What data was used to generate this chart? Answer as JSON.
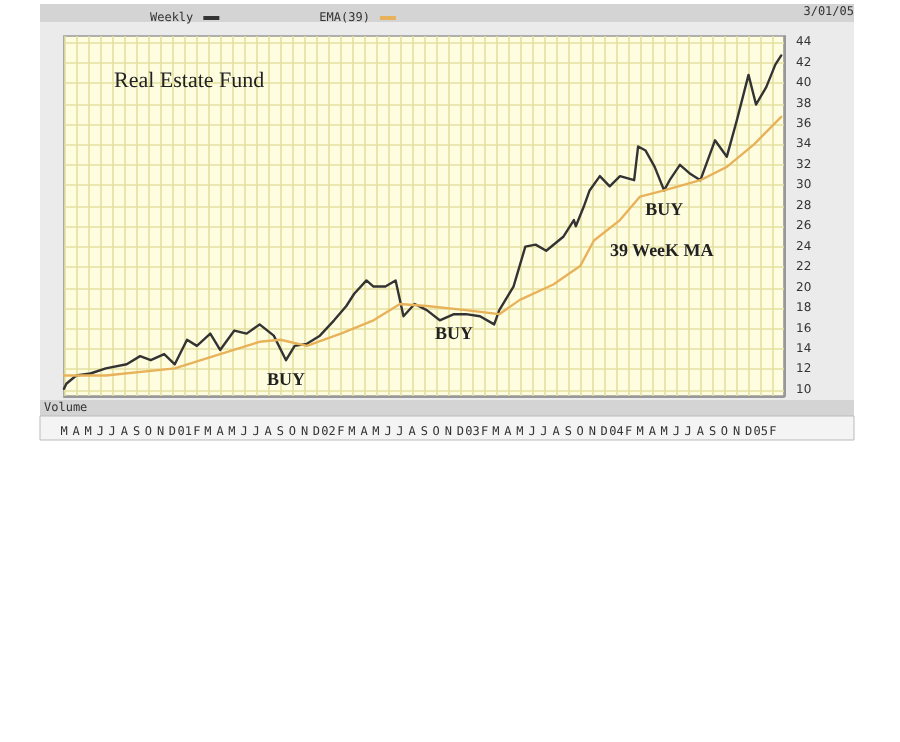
{
  "chart_data": {
    "type": "line",
    "title": "Real Estate Fund",
    "series": [
      {
        "name": "Weekly",
        "color": "#333333",
        "x": [
          "2000-03-01",
          "2000-03-07",
          "2000-04-01",
          "2000-05-07",
          "2000-06-15",
          "2000-08-07",
          "2000-09-10",
          "2000-10-07",
          "2000-11-10",
          "2000-12-07",
          "2001-01-07",
          "2001-02-01",
          "2001-03-07",
          "2001-04-01",
          "2001-05-07",
          "2001-06-07",
          "2001-07-10",
          "2001-08-15",
          "2001-09-15",
          "2001-10-07",
          "2001-11-07",
          "2001-12-10",
          "2002-01-15",
          "2002-02-15",
          "2002-03-07",
          "2002-04-07",
          "2002-04-25",
          "2002-05-25",
          "2002-06-20",
          "2002-07-10",
          "2002-08-07",
          "2002-09-07",
          "2002-10-10",
          "2002-11-15",
          "2002-12-15",
          "2003-01-20",
          "2003-02-25",
          "2003-03-10",
          "2003-04-15",
          "2003-05-15",
          "2003-06-10",
          "2003-07-07",
          "2003-08-20",
          "2003-09-15",
          "2003-09-20",
          "2003-10-10",
          "2003-10-25",
          "2003-11-20",
          "2003-12-15",
          "2004-01-10",
          "2004-02-15",
          "2004-02-25",
          "2004-03-15",
          "2004-04-07",
          "2004-05-01",
          "2004-05-15",
          "2004-06-10",
          "2004-07-07",
          "2004-08-01",
          "2004-09-07",
          "2004-10-07",
          "2004-11-01",
          "2004-12-01",
          "2004-12-20",
          "2005-01-15",
          "2005-02-07",
          "2005-02-22"
        ],
        "values": [
          10.1,
          10.6,
          11.4,
          11.6,
          12.1,
          12.5,
          13.3,
          12.9,
          13.5,
          12.5,
          14.9,
          14.3,
          15.5,
          13.9,
          15.8,
          15.5,
          16.4,
          15.3,
          12.9,
          14.3,
          14.5,
          15.3,
          16.8,
          18.2,
          19.4,
          20.7,
          20.1,
          20.1,
          20.7,
          17.2,
          18.4,
          17.8,
          16.8,
          17.4,
          17.4,
          17.2,
          16.4,
          17.8,
          20.1,
          24.0,
          24.2,
          23.6,
          25.0,
          26.6,
          26.0,
          27.9,
          29.5,
          30.9,
          29.9,
          30.9,
          30.5,
          33.8,
          33.4,
          31.8,
          29.5,
          30.5,
          32.0,
          31.1,
          30.5,
          34.4,
          32.8,
          36.3,
          40.8,
          37.9,
          39.6,
          41.8,
          42.7
        ]
      },
      {
        "name": "EMA(39)",
        "color": "#e8b25a",
        "x": [
          "2000-03-01",
          "2000-06-15",
          "2000-12-07",
          "2001-04-01",
          "2001-07-10",
          "2001-09-01",
          "2001-11-07",
          "2002-02-01",
          "2002-04-25",
          "2002-07-01",
          "2002-09-07",
          "2002-12-15",
          "2003-03-10",
          "2003-05-01",
          "2003-07-25",
          "2003-10-01",
          "2003-11-05",
          "2004-01-10",
          "2004-03-01",
          "2004-05-01",
          "2004-08-01",
          "2004-10-07",
          "2004-12-15",
          "2005-02-22"
        ],
        "values": [
          11.4,
          11.4,
          12.1,
          13.5,
          14.7,
          14.9,
          14.3,
          15.5,
          16.8,
          18.4,
          18.2,
          17.8,
          17.4,
          18.8,
          20.3,
          22.1,
          24.6,
          26.6,
          28.9,
          29.5,
          30.5,
          31.8,
          34.0,
          36.7
        ]
      }
    ],
    "xlim": [
      "2000-03-01",
      "2005-03-01"
    ],
    "xticks": [
      {
        "value": "2000-03-01",
        "label": "M"
      },
      {
        "value": "2000-04-01",
        "label": "A"
      },
      {
        "value": "2000-05-01",
        "label": "M"
      },
      {
        "value": "2000-06-01",
        "label": "J"
      },
      {
        "value": "2000-07-01",
        "label": "J"
      },
      {
        "value": "2000-08-01",
        "label": "A"
      },
      {
        "value": "2000-09-01",
        "label": "S"
      },
      {
        "value": "2000-10-01",
        "label": "O"
      },
      {
        "value": "2000-11-01",
        "label": "N"
      },
      {
        "value": "2000-12-01",
        "label": "D"
      },
      {
        "value": "2001-01-01",
        "label": "01"
      },
      {
        "value": "2001-02-01",
        "label": "F"
      },
      {
        "value": "2001-03-01",
        "label": "M"
      },
      {
        "value": "2001-04-01",
        "label": "A"
      },
      {
        "value": "2001-05-01",
        "label": "M"
      },
      {
        "value": "2001-06-01",
        "label": "J"
      },
      {
        "value": "2001-07-01",
        "label": "J"
      },
      {
        "value": "2001-08-01",
        "label": "A"
      },
      {
        "value": "2001-09-01",
        "label": "S"
      },
      {
        "value": "2001-10-01",
        "label": "O"
      },
      {
        "value": "2001-11-01",
        "label": "N"
      },
      {
        "value": "2001-12-01",
        "label": "D"
      },
      {
        "value": "2002-01-01",
        "label": "02"
      },
      {
        "value": "2002-02-01",
        "label": "F"
      },
      {
        "value": "2002-03-01",
        "label": "M"
      },
      {
        "value": "2002-04-01",
        "label": "A"
      },
      {
        "value": "2002-05-01",
        "label": "M"
      },
      {
        "value": "2002-06-01",
        "label": "J"
      },
      {
        "value": "2002-07-01",
        "label": "J"
      },
      {
        "value": "2002-08-01",
        "label": "A"
      },
      {
        "value": "2002-09-01",
        "label": "S"
      },
      {
        "value": "2002-10-01",
        "label": "O"
      },
      {
        "value": "2002-11-01",
        "label": "N"
      },
      {
        "value": "2002-12-01",
        "label": "D"
      },
      {
        "value": "2003-01-01",
        "label": "03"
      },
      {
        "value": "2003-02-01",
        "label": "F"
      },
      {
        "value": "2003-03-01",
        "label": "M"
      },
      {
        "value": "2003-04-01",
        "label": "A"
      },
      {
        "value": "2003-05-01",
        "label": "M"
      },
      {
        "value": "2003-06-01",
        "label": "J"
      },
      {
        "value": "2003-07-01",
        "label": "J"
      },
      {
        "value": "2003-08-01",
        "label": "A"
      },
      {
        "value": "2003-09-01",
        "label": "S"
      },
      {
        "value": "2003-10-01",
        "label": "O"
      },
      {
        "value": "2003-11-01",
        "label": "N"
      },
      {
        "value": "2003-12-01",
        "label": "D"
      },
      {
        "value": "2004-01-01",
        "label": "04"
      },
      {
        "value": "2004-02-01",
        "label": "F"
      },
      {
        "value": "2004-03-01",
        "label": "M"
      },
      {
        "value": "2004-04-01",
        "label": "A"
      },
      {
        "value": "2004-05-01",
        "label": "M"
      },
      {
        "value": "2004-06-01",
        "label": "J"
      },
      {
        "value": "2004-07-01",
        "label": "J"
      },
      {
        "value": "2004-08-01",
        "label": "A"
      },
      {
        "value": "2004-09-01",
        "label": "S"
      },
      {
        "value": "2004-10-01",
        "label": "O"
      },
      {
        "value": "2004-11-01",
        "label": "N"
      },
      {
        "value": "2004-12-01",
        "label": "D"
      },
      {
        "value": "2005-01-01",
        "label": "05"
      },
      {
        "value": "2005-02-01",
        "label": "F"
      }
    ],
    "ylim": [
      9.4,
      44.6
    ],
    "yticks": [
      10,
      12,
      14,
      16,
      18,
      20,
      22,
      24,
      26,
      28,
      30,
      32,
      34,
      36,
      38,
      40,
      42,
      44
    ],
    "grid": true,
    "legend": "top left",
    "marker": "none",
    "line_style": "solid",
    "annotations": [
      {
        "text": "BUY",
        "x": "2001-09-15",
        "y": 12.9
      },
      {
        "text": "BUY",
        "x": "2002-11-15",
        "y": 17.4
      },
      {
        "text": "BUY",
        "x": "2004-05-01",
        "y": 29.5
      },
      {
        "text": "39 WeeK MA",
        "x": "2003-11-05",
        "y": 24.6
      },
      "3/01/05",
      "Volume"
    ]
  }
}
